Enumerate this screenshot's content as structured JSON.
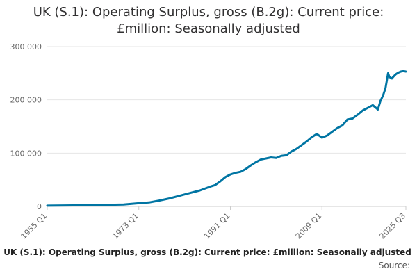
{
  "title_line1": "UK (S.1): Operating Surplus, gross (B.2g): Current price:",
  "title_line2": "£million: Seasonally adjusted",
  "legend_label": "UK (S.1): Operating Surplus, gross (B.2g): Current price: £million: Seasonally adjusted",
  "source_label": "Source:",
  "colors": {
    "series": "#0075a3",
    "grid": "#e6e6e6",
    "axis_text": "#666666"
  },
  "chart_data": {
    "type": "line",
    "title": "UK (S.1): Operating Surplus, gross (B.2g): Current price: £million: Seasonally adjusted",
    "xlabel": "",
    "ylabel": "",
    "x_range": [
      "1955 Q1",
      "2025 Q3"
    ],
    "ylim": [
      0,
      300000
    ],
    "y_ticks": [
      0,
      100000,
      200000,
      300000
    ],
    "y_tick_labels": [
      "0",
      "100 000",
      "200 000",
      "300 000"
    ],
    "x_ticks": [
      {
        "year": 1955.0,
        "label": "1955 Q1"
      },
      {
        "year": 1973.0,
        "label": "1973 Q1"
      },
      {
        "year": 1991.0,
        "label": "1991 Q1"
      },
      {
        "year": 2009.0,
        "label": "2009 Q1"
      },
      {
        "year": 2025.5,
        "label": "2025 Q3"
      }
    ],
    "grid": true,
    "legend": "bottom",
    "series": [
      {
        "name": "UK (S.1): Operating Surplus, gross (B.2g): Current price: £million: Seasonally adjusted",
        "points": [
          [
            1955,
            1500
          ],
          [
            1960,
            2000
          ],
          [
            1965,
            2600
          ],
          [
            1970,
            3600
          ],
          [
            1973,
            6000
          ],
          [
            1975,
            7500
          ],
          [
            1977,
            11000
          ],
          [
            1979,
            15000
          ],
          [
            1981,
            20000
          ],
          [
            1983,
            25000
          ],
          [
            1985,
            30000
          ],
          [
            1987,
            37000
          ],
          [
            1988,
            40000
          ],
          [
            1989,
            47000
          ],
          [
            1990,
            55000
          ],
          [
            1991,
            60000
          ],
          [
            1992,
            63000
          ],
          [
            1993,
            65000
          ],
          [
            1994,
            70000
          ],
          [
            1995,
            77000
          ],
          [
            1996,
            83000
          ],
          [
            1997,
            88000
          ],
          [
            1998,
            90000
          ],
          [
            1999,
            92000
          ],
          [
            2000,
            91000
          ],
          [
            2001,
            95000
          ],
          [
            2002,
            96000
          ],
          [
            2003,
            103000
          ],
          [
            2004,
            108000
          ],
          [
            2005,
            115000
          ],
          [
            2006,
            122000
          ],
          [
            2007,
            130000
          ],
          [
            2008,
            136000
          ],
          [
            2009,
            129000
          ],
          [
            2010,
            133000
          ],
          [
            2011,
            140000
          ],
          [
            2012,
            147000
          ],
          [
            2013,
            152000
          ],
          [
            2014,
            163000
          ],
          [
            2015,
            165000
          ],
          [
            2016,
            172000
          ],
          [
            2017,
            180000
          ],
          [
            2018,
            185000
          ],
          [
            2019,
            190000
          ],
          [
            2020.0,
            182000
          ],
          [
            2020.5,
            198000
          ],
          [
            2021,
            208000
          ],
          [
            2021.5,
            222000
          ],
          [
            2022.0,
            250000
          ],
          [
            2022.25,
            243000
          ],
          [
            2022.75,
            240000
          ],
          [
            2023.0,
            243000
          ],
          [
            2023.5,
            248000
          ],
          [
            2024.0,
            251000
          ],
          [
            2024.5,
            253000
          ],
          [
            2025.0,
            254000
          ],
          [
            2025.5,
            253000
          ]
        ]
      }
    ]
  }
}
